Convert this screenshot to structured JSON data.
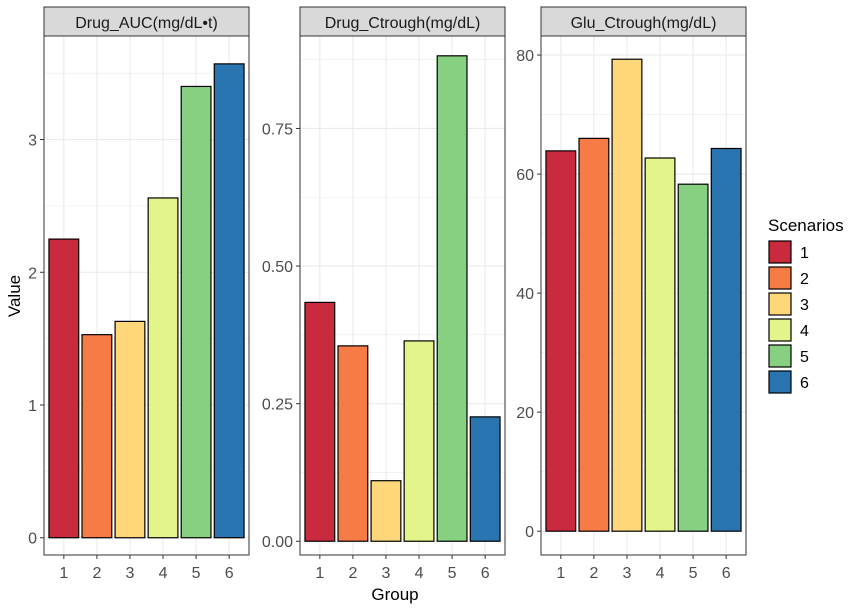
{
  "chart_data": {
    "type": "bar",
    "facet": true,
    "xlabel": "Group",
    "ylabel": "Value",
    "categories": [
      "1",
      "2",
      "3",
      "4",
      "5",
      "6"
    ],
    "legend": {
      "title": "Scenarios",
      "position": "right",
      "entries": [
        "1",
        "2",
        "3",
        "4",
        "5",
        "6"
      ],
      "colors": [
        "#CA2A3E",
        "#F77B45",
        "#FDD77A",
        "#E3F48B",
        "#88D081",
        "#2A75B0"
      ]
    },
    "grid": true,
    "panels": [
      {
        "title": "Drug_AUC(mg/dL•t)",
        "values": [
          2.25,
          1.53,
          1.63,
          2.56,
          3.4,
          3.57
        ],
        "ylim": [
          -0.13,
          3.78
        ],
        "yticks": [
          0,
          1,
          2,
          3
        ],
        "yticklabels": [
          "0",
          "1",
          "2",
          "3"
        ]
      },
      {
        "title": "Drug_Ctrough(mg/dL)",
        "values": [
          0.434,
          0.355,
          0.11,
          0.364,
          0.882,
          0.226
        ],
        "ylim": [
          -0.025,
          0.918
        ],
        "yticks": [
          0,
          0.25,
          0.5,
          0.75
        ],
        "yticklabels": [
          "0.00",
          "0.25",
          "0.50",
          "0.75"
        ]
      },
      {
        "title": "Glu_Ctrough(mg/dL)",
        "values": [
          63.9,
          66.0,
          79.3,
          62.7,
          58.3,
          64.3
        ],
        "ylim": [
          -4.0,
          83.2
        ],
        "yticks": [
          0,
          20,
          40,
          60,
          80
        ],
        "yticklabels": [
          "0",
          "20",
          "40",
          "60",
          "80"
        ]
      }
    ]
  }
}
